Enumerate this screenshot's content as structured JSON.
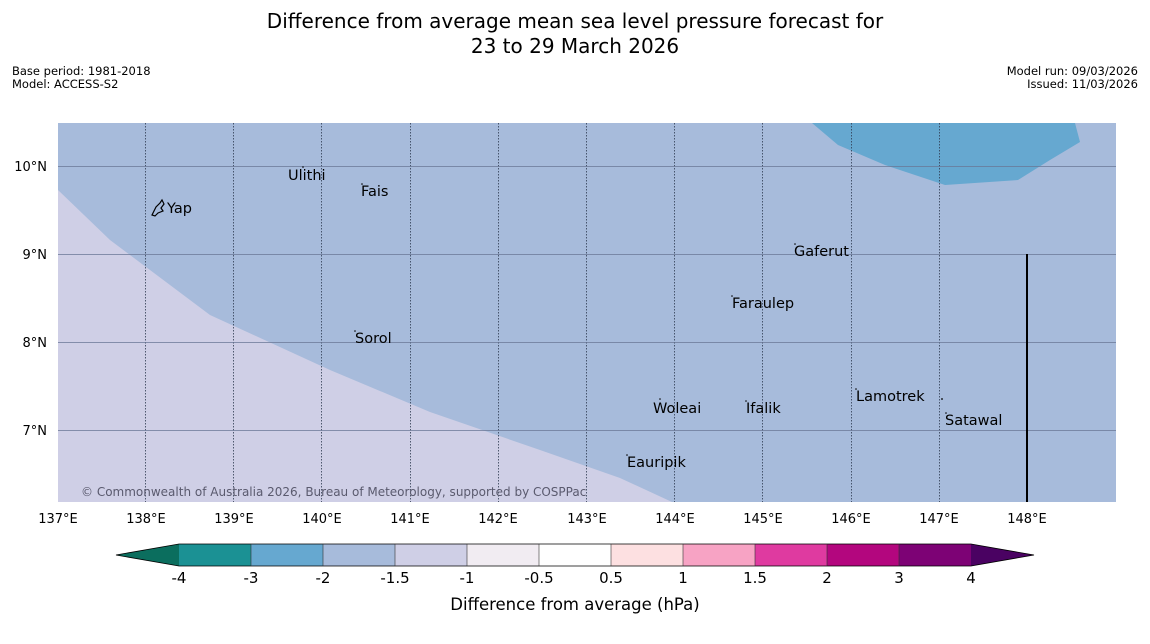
{
  "title_line1": "Difference from average mean sea level pressure forecast for",
  "title_line2": "23 to 29 March 2026",
  "base_period": "Base period: 1981-2018",
  "model": "Model: ACCESS-S2",
  "model_run": "Model run: 09/03/2026",
  "issued": "Issued: 11/03/2026",
  "copyright": "© Commonwealth of Australia 2026, Bureau of Meteorology, supported by COSPPac",
  "lon_ticks": [
    "137°E",
    "138°E",
    "139°E",
    "140°E",
    "141°E",
    "142°E",
    "143°E",
    "144°E",
    "145°E",
    "146°E",
    "147°E",
    "148°E"
  ],
  "lat_ticks": [
    "10°N",
    "9°N",
    "8°N",
    "7°N"
  ],
  "places": {
    "yap": "Yap",
    "ulithi": "Ulithi",
    "fais": "Fais",
    "gaferut": "Gaferut",
    "faraulep": "Faraulep",
    "sorol": "Sorol",
    "woleai": "Woleai",
    "ifalik": "Ifalik",
    "lamotrek": "Lamotrek",
    "satawal": "Satawal",
    "eauripik": "Eauripik"
  },
  "colorbar": {
    "title": "Difference from average (hPa)",
    "labels": [
      "-4",
      "-3",
      "-2",
      "-1.5",
      "-1",
      "-0.5",
      "0.5",
      "1",
      "1.5",
      "2",
      "3",
      "4"
    ],
    "colors": {
      "under": "#0b6e5e",
      "c1": "#1b9194",
      "c2": "#66a8d0",
      "c3": "#a7bbdb",
      "c4": "#cfcfe6",
      "c5": "#f1ecf2",
      "c6": "#ffffff",
      "c7": "#fde0e1",
      "c8": "#f7a3c4",
      "c9": "#df3aa0",
      "c10": "#b3067e",
      "c11": "#7d0275",
      "over": "#4a0262"
    }
  }
}
